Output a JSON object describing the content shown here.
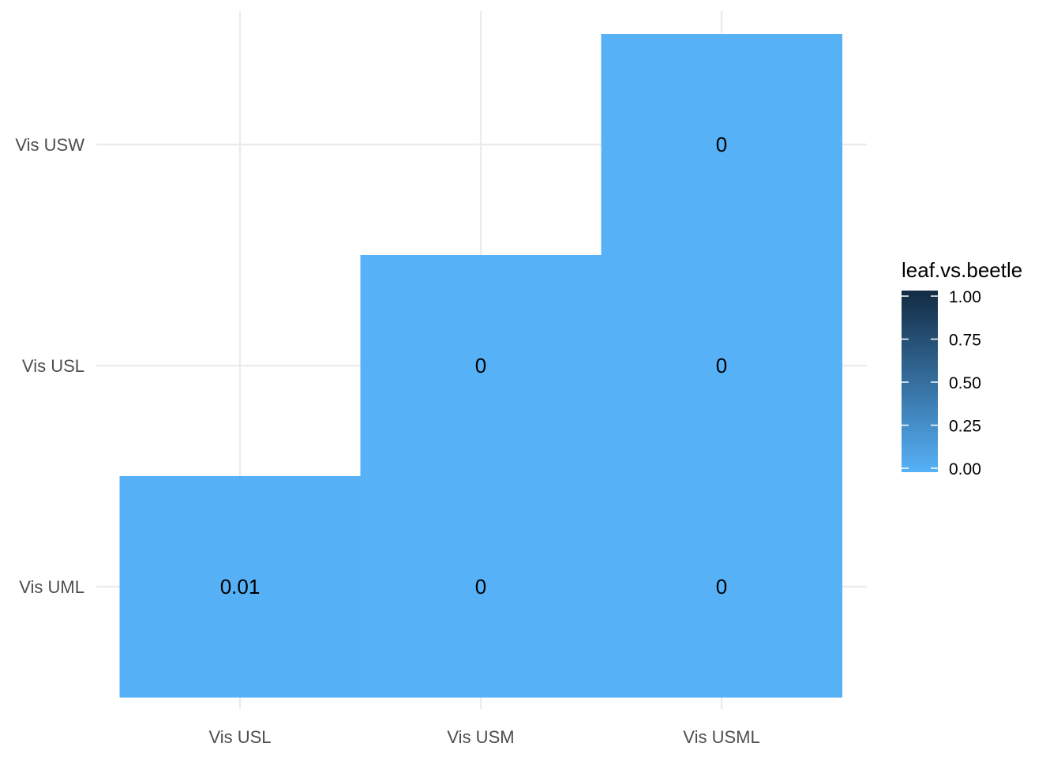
{
  "chart_data": {
    "type": "heatmap",
    "x_categories": [
      "Vis USL",
      "Vis USM",
      "Vis USML"
    ],
    "y_categories": [
      "Vis UML",
      "Vis USL",
      "Vis USW"
    ],
    "cells": [
      {
        "x": "Vis USL",
        "y": "Vis UML",
        "value": 0.01,
        "label": "0.01"
      },
      {
        "x": "Vis USM",
        "y": "Vis UML",
        "value": 0,
        "label": "0"
      },
      {
        "x": "Vis USML",
        "y": "Vis UML",
        "value": 0,
        "label": "0"
      },
      {
        "x": "Vis USM",
        "y": "Vis USL",
        "value": 0,
        "label": "0"
      },
      {
        "x": "Vis USML",
        "y": "Vis USL",
        "value": 0,
        "label": "0"
      },
      {
        "x": "Vis USML",
        "y": "Vis USW",
        "value": 0,
        "label": "0"
      }
    ],
    "legend": {
      "title": "leaf.vs.beetle",
      "position": "right",
      "min": 0,
      "max": 1,
      "ticks": [
        {
          "value": 0,
          "label": "0.00"
        },
        {
          "value": 0.25,
          "label": "0.25"
        },
        {
          "value": 0.5,
          "label": "0.50"
        },
        {
          "value": 0.75,
          "label": "0.75"
        },
        {
          "value": 1,
          "label": "1.00"
        }
      ],
      "low_color": "#56B1F7",
      "high_color": "#132B43"
    },
    "title": "",
    "xlabel": "",
    "ylabel": "",
    "grid": true
  },
  "colors": {
    "grid": "#ebebeb",
    "axis_text": "#4d4d4d",
    "background": "#ffffff"
  }
}
